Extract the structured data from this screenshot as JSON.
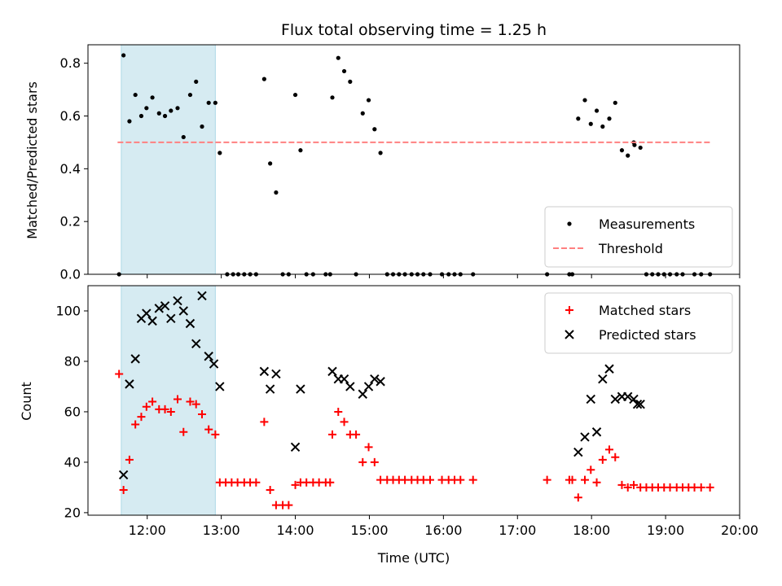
{
  "chart_data": {
    "type": "scatter",
    "title": "Flux total observing time = 1.25 h",
    "xlabel": "Time (UTC)",
    "x_unit": "hours UTC",
    "x_ticks": [
      {
        "v": 12,
        "label": "12:00"
      },
      {
        "v": 13,
        "label": "13:00"
      },
      {
        "v": 14,
        "label": "14:00"
      },
      {
        "v": 15,
        "label": "15:00"
      },
      {
        "v": 16,
        "label": "16:00"
      },
      {
        "v": 17,
        "label": "17:00"
      },
      {
        "v": 18,
        "label": "18:00"
      },
      {
        "v": 19,
        "label": "19:00"
      },
      {
        "v": 20,
        "label": "20:00"
      }
    ],
    "xlim": [
      11.2,
      20.0
    ],
    "shaded_span": {
      "x0": 11.65,
      "x1": 12.92,
      "color": "#add8e6"
    },
    "panels": [
      {
        "name": "ratio",
        "ylabel": "Matched/Predicted stars",
        "ylim": [
          0,
          0.87
        ],
        "yticks": [
          "0.0",
          "0.2",
          "0.4",
          "0.6",
          "0.8"
        ],
        "legend_position": "lower-right",
        "series": [
          {
            "name": "Measurements",
            "kind": "dot",
            "color": "#000000",
            "points": [
              [
                11.62,
                0.0
              ],
              [
                11.68,
                0.83
              ],
              [
                11.76,
                0.58
              ],
              [
                11.84,
                0.68
              ],
              [
                11.92,
                0.6
              ],
              [
                11.99,
                0.63
              ],
              [
                12.07,
                0.67
              ],
              [
                12.16,
                0.61
              ],
              [
                12.24,
                0.6
              ],
              [
                12.32,
                0.62
              ],
              [
                12.41,
                0.63
              ],
              [
                12.49,
                0.52
              ],
              [
                12.58,
                0.68
              ],
              [
                12.66,
                0.73
              ],
              [
                12.74,
                0.56
              ],
              [
                12.83,
                0.65
              ],
              [
                12.92,
                0.65
              ],
              [
                12.98,
                0.46
              ],
              [
                13.08,
                0.0
              ],
              [
                13.16,
                0.0
              ],
              [
                13.23,
                0.0
              ],
              [
                13.31,
                0.0
              ],
              [
                13.39,
                0.0
              ],
              [
                13.47,
                0.0
              ],
              [
                13.58,
                0.74
              ],
              [
                13.66,
                0.42
              ],
              [
                13.74,
                0.31
              ],
              [
                13.83,
                0.0
              ],
              [
                13.91,
                0.0
              ],
              [
                14.0,
                0.68
              ],
              [
                14.07,
                0.47
              ],
              [
                14.15,
                0.0
              ],
              [
                14.24,
                0.0
              ],
              [
                14.41,
                0.0
              ],
              [
                14.47,
                0.0
              ],
              [
                14.5,
                0.67
              ],
              [
                14.58,
                0.82
              ],
              [
                14.66,
                0.77
              ],
              [
                14.74,
                0.73
              ],
              [
                14.82,
                0.0
              ],
              [
                14.91,
                0.61
              ],
              [
                14.99,
                0.66
              ],
              [
                15.07,
                0.55
              ],
              [
                15.15,
                0.46
              ],
              [
                15.24,
                0.0
              ],
              [
                15.32,
                0.0
              ],
              [
                15.4,
                0.0
              ],
              [
                15.48,
                0.0
              ],
              [
                15.57,
                0.0
              ],
              [
                15.65,
                0.0
              ],
              [
                15.73,
                0.0
              ],
              [
                15.82,
                0.0
              ],
              [
                15.98,
                0.0
              ],
              [
                16.07,
                0.0
              ],
              [
                16.15,
                0.0
              ],
              [
                16.23,
                0.0
              ],
              [
                16.4,
                0.0
              ],
              [
                17.4,
                0.0
              ],
              [
                17.7,
                0.0
              ],
              [
                17.74,
                0.0
              ],
              [
                17.82,
                0.59
              ],
              [
                17.91,
                0.66
              ],
              [
                17.99,
                0.57
              ],
              [
                18.07,
                0.62
              ],
              [
                18.15,
                0.56
              ],
              [
                18.24,
                0.59
              ],
              [
                18.32,
                0.65
              ],
              [
                18.41,
                0.47
              ],
              [
                18.49,
                0.45
              ],
              [
                18.57,
                0.5
              ],
              [
                18.58,
                0.49
              ],
              [
                18.66,
                0.48
              ],
              [
                18.74,
                0.0
              ],
              [
                18.82,
                0.0
              ],
              [
                18.9,
                0.0
              ],
              [
                18.98,
                0.0
              ],
              [
                19.06,
                0.0
              ],
              [
                19.15,
                0.0
              ],
              [
                19.23,
                0.0
              ],
              [
                19.39,
                0.0
              ],
              [
                19.48,
                0.0
              ],
              [
                19.6,
                0.0
              ]
            ]
          },
          {
            "name": "Threshold",
            "kind": "dashed-line",
            "color": "#ff8080",
            "points": [
              [
                11.6,
                0.5
              ],
              [
                19.6,
                0.5
              ]
            ]
          }
        ]
      },
      {
        "name": "counts",
        "ylabel": "Count",
        "ylim": [
          19,
          110
        ],
        "yticks": [
          "20",
          "40",
          "60",
          "80",
          "100"
        ],
        "legend_position": "upper-right",
        "series": [
          {
            "name": "Matched stars",
            "kind": "plus",
            "color": "#ff0000",
            "points": [
              [
                11.62,
                75
              ],
              [
                11.68,
                29
              ],
              [
                11.76,
                41
              ],
              [
                11.84,
                55
              ],
              [
                11.92,
                58
              ],
              [
                11.99,
                62
              ],
              [
                12.07,
                64
              ],
              [
                12.16,
                61
              ],
              [
                12.24,
                61
              ],
              [
                12.32,
                60
              ],
              [
                12.41,
                65
              ],
              [
                12.49,
                52
              ],
              [
                12.58,
                64
              ],
              [
                12.66,
                63
              ],
              [
                12.74,
                59
              ],
              [
                12.83,
                53
              ],
              [
                12.92,
                51
              ],
              [
                12.98,
                32
              ],
              [
                13.06,
                32
              ],
              [
                13.14,
                32
              ],
              [
                13.22,
                32
              ],
              [
                13.31,
                32
              ],
              [
                13.39,
                32
              ],
              [
                13.47,
                32
              ],
              [
                13.58,
                56
              ],
              [
                13.66,
                29
              ],
              [
                13.74,
                23
              ],
              [
                13.83,
                23
              ],
              [
                13.91,
                23
              ],
              [
                14.0,
                31
              ],
              [
                14.07,
                32
              ],
              [
                14.15,
                32
              ],
              [
                14.24,
                32
              ],
              [
                14.32,
                32
              ],
              [
                14.41,
                32
              ],
              [
                14.47,
                32
              ],
              [
                14.5,
                51
              ],
              [
                14.58,
                60
              ],
              [
                14.66,
                56
              ],
              [
                14.74,
                51
              ],
              [
                14.82,
                51
              ],
              [
                14.91,
                40
              ],
              [
                14.99,
                46
              ],
              [
                15.07,
                40
              ],
              [
                15.15,
                33
              ],
              [
                15.24,
                33
              ],
              [
                15.32,
                33
              ],
              [
                15.4,
                33
              ],
              [
                15.48,
                33
              ],
              [
                15.57,
                33
              ],
              [
                15.65,
                33
              ],
              [
                15.73,
                33
              ],
              [
                15.82,
                33
              ],
              [
                15.98,
                33
              ],
              [
                16.07,
                33
              ],
              [
                16.15,
                33
              ],
              [
                16.23,
                33
              ],
              [
                16.4,
                33
              ],
              [
                17.4,
                33
              ],
              [
                17.7,
                33
              ],
              [
                17.74,
                33
              ],
              [
                17.82,
                26
              ],
              [
                17.91,
                33
              ],
              [
                17.99,
                37
              ],
              [
                18.07,
                32
              ],
              [
                18.15,
                41
              ],
              [
                18.24,
                45
              ],
              [
                18.32,
                42
              ],
              [
                18.41,
                31
              ],
              [
                18.49,
                30
              ],
              [
                18.57,
                31
              ],
              [
                18.66,
                30
              ],
              [
                18.74,
                30
              ],
              [
                18.82,
                30
              ],
              [
                18.9,
                30
              ],
              [
                18.98,
                30
              ],
              [
                19.06,
                30
              ],
              [
                19.15,
                30
              ],
              [
                19.23,
                30
              ],
              [
                19.31,
                30
              ],
              [
                19.39,
                30
              ],
              [
                19.48,
                30
              ],
              [
                19.6,
                30
              ]
            ]
          },
          {
            "name": "Predicted stars",
            "kind": "cross",
            "color": "#000000",
            "points": [
              [
                11.68,
                35
              ],
              [
                11.76,
                71
              ],
              [
                11.84,
                81
              ],
              [
                11.92,
                97
              ],
              [
                11.99,
                99
              ],
              [
                12.07,
                96
              ],
              [
                12.16,
                101
              ],
              [
                12.24,
                102
              ],
              [
                12.32,
                97
              ],
              [
                12.41,
                104
              ],
              [
                12.49,
                100
              ],
              [
                12.58,
                95
              ],
              [
                12.66,
                87
              ],
              [
                12.74,
                106
              ],
              [
                12.83,
                82
              ],
              [
                12.9,
                79
              ],
              [
                12.98,
                70
              ],
              [
                13.58,
                76
              ],
              [
                13.66,
                69
              ],
              [
                13.74,
                75
              ],
              [
                14.0,
                46
              ],
              [
                14.07,
                69
              ],
              [
                14.5,
                76
              ],
              [
                14.58,
                73
              ],
              [
                14.66,
                73
              ],
              [
                14.74,
                70
              ],
              [
                14.91,
                67
              ],
              [
                14.99,
                70
              ],
              [
                15.07,
                73
              ],
              [
                15.15,
                72
              ],
              [
                17.82,
                44
              ],
              [
                17.91,
                50
              ],
              [
                17.99,
                65
              ],
              [
                18.07,
                52
              ],
              [
                18.15,
                73
              ],
              [
                18.24,
                77
              ],
              [
                18.32,
                65
              ],
              [
                18.41,
                66
              ],
              [
                18.49,
                66
              ],
              [
                18.57,
                65
              ],
              [
                18.66,
                63
              ],
              [
                18.62,
                63
              ]
            ]
          }
        ]
      }
    ]
  }
}
